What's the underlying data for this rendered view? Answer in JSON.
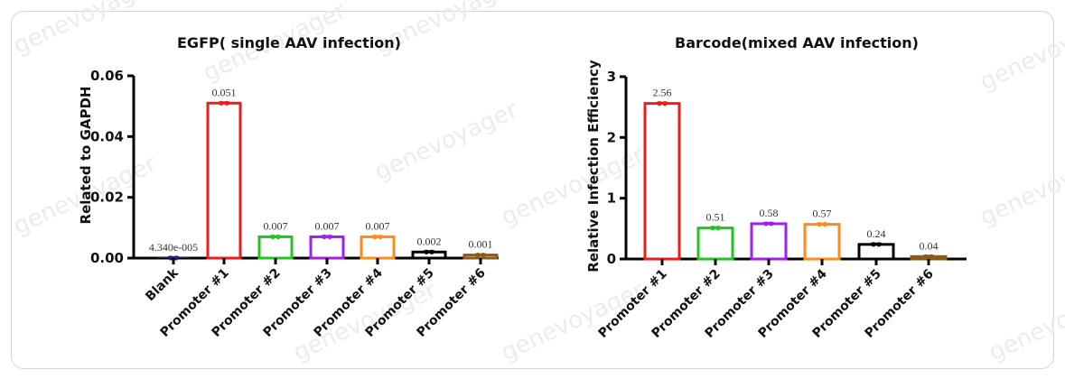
{
  "watermark": "genevoyager",
  "chart_data": [
    {
      "type": "bar",
      "title": "EGFP( single AAV infection)",
      "xlabel": "",
      "ylabel": "Related to GAPDH",
      "ylim": [
        0,
        0.06
      ],
      "yticks": [
        "0.00",
        "0.02",
        "0.04",
        "0.06"
      ],
      "grid": false,
      "categories": [
        "Blank",
        "Promoter #1",
        "Promoter #2",
        "Promoter #3",
        "Promoter #4",
        "Promoter #5",
        "Promoter #6"
      ],
      "values": [
        4.34e-05,
        0.051,
        0.007,
        0.007,
        0.007,
        0.002,
        0.001
      ],
      "data_labels": [
        "4.340e-005",
        "0.051",
        "0.007",
        "0.007",
        "0.007",
        "0.002",
        "0.001"
      ],
      "colors": [
        "#1a237e",
        "#ee1c1c",
        "#22c322",
        "#a020f0",
        "#ff8c1a",
        "#000000",
        "#8b5a1b"
      ]
    },
    {
      "type": "bar",
      "title": "Barcode(mixed AAV  infection)",
      "xlabel": "",
      "ylabel": "Relative Infection Efficiency",
      "ylim": [
        0,
        3
      ],
      "yticks": [
        "0",
        "1",
        "2",
        "3"
      ],
      "grid": false,
      "categories": [
        "Promoter #1",
        "Promoter #2",
        "Promoter #3",
        "Promoter #4",
        "Promoter #5",
        "Promoter #6"
      ],
      "values": [
        2.56,
        0.51,
        0.58,
        0.57,
        0.24,
        0.04
      ],
      "data_labels": [
        "2.56",
        "0.51",
        "0.58",
        "0.57",
        "0.24",
        "0.04"
      ],
      "colors": [
        "#ee1c1c",
        "#22c322",
        "#a020f0",
        "#ff8c1a",
        "#000000",
        "#8b5a1b"
      ]
    }
  ]
}
